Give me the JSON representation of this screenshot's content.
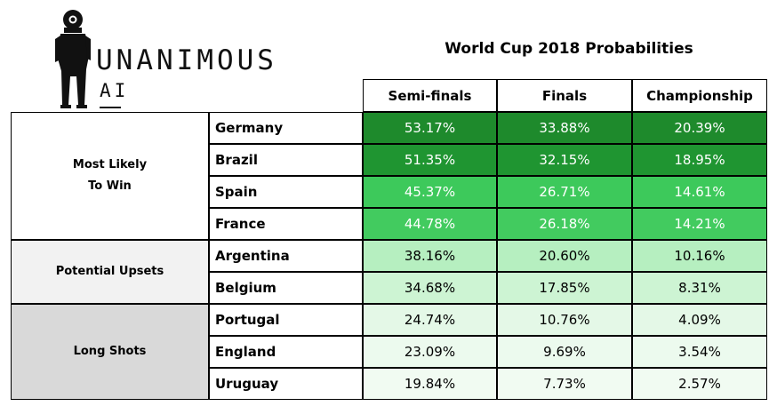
{
  "logo": {
    "word": "UNANIMOUS",
    "sub": "AI"
  },
  "title": "World Cup 2018 Probabilities",
  "columns": [
    "Semi-finals",
    "Finals",
    "Championship"
  ],
  "groups": [
    {
      "label": "Most Likely\nTo Win",
      "bg": "#ffffff"
    },
    {
      "label": "Potential Upsets",
      "bg": "#f2f2f2"
    },
    {
      "label": "Long Shots",
      "bg": "#d9d9d9"
    }
  ],
  "rows": [
    {
      "team": "Germany",
      "cells": [
        "53.17%",
        "33.88%",
        "20.39%"
      ],
      "fill": "#1e8a2c",
      "text": "#ffffff"
    },
    {
      "team": "Brazil",
      "cells": [
        "51.35%",
        "32.15%",
        "18.95%"
      ],
      "fill": "#1f9531",
      "text": "#ffffff"
    },
    {
      "team": "Spain",
      "cells": [
        "45.37%",
        "26.71%",
        "14.61%"
      ],
      "fill": "#3dc95b",
      "text": "#ffffff"
    },
    {
      "team": "France",
      "cells": [
        "44.78%",
        "26.18%",
        "14.21%"
      ],
      "fill": "#42cb5f",
      "text": "#ffffff"
    },
    {
      "team": "Argentina",
      "cells": [
        "38.16%",
        "20.60%",
        "10.16%"
      ],
      "fill": "#b6efc0",
      "text": "#000000"
    },
    {
      "team": "Belgium",
      "cells": [
        "34.68%",
        "17.85%",
        "8.31%"
      ],
      "fill": "#cdf4d3",
      "text": "#000000"
    },
    {
      "team": "Portugal",
      "cells": [
        "24.74%",
        "10.76%",
        "4.09%"
      ],
      "fill": "#e4f8e7",
      "text": "#000000"
    },
    {
      "team": "England",
      "cells": [
        "23.09%",
        "9.69%",
        "3.54%"
      ],
      "fill": "#ecfaee",
      "text": "#000000"
    },
    {
      "team": "Uruguay",
      "cells": [
        "19.84%",
        "7.73%",
        "2.57%"
      ],
      "fill": "#f1fbf2",
      "text": "#000000"
    }
  ],
  "chart_data": {
    "type": "table",
    "title": "World Cup 2018 Probabilities",
    "columns": [
      "Semi-finals",
      "Finals",
      "Championship"
    ],
    "categories": [
      "Germany",
      "Brazil",
      "Spain",
      "France",
      "Argentina",
      "Belgium",
      "Portugal",
      "England",
      "Uruguay"
    ],
    "series": [
      {
        "name": "Semi-finals",
        "values": [
          53.17,
          51.35,
          45.37,
          44.78,
          38.16,
          34.68,
          24.74,
          23.09,
          19.84
        ]
      },
      {
        "name": "Finals",
        "values": [
          33.88,
          32.15,
          26.71,
          26.18,
          20.6,
          17.85,
          10.76,
          9.69,
          7.73
        ]
      },
      {
        "name": "Championship",
        "values": [
          20.39,
          18.95,
          14.61,
          14.21,
          10.16,
          8.31,
          4.09,
          3.54,
          2.57
        ]
      }
    ],
    "groups": [
      {
        "label": "Most Likely\nTo Win",
        "teams": [
          "Germany",
          "Brazil",
          "Spain",
          "France"
        ]
      },
      {
        "label": "Potential Upsets",
        "teams": [
          "Argentina",
          "Belgium"
        ]
      },
      {
        "label": "Long Shots",
        "teams": [
          "Portugal",
          "England",
          "Uruguay"
        ]
      }
    ]
  }
}
